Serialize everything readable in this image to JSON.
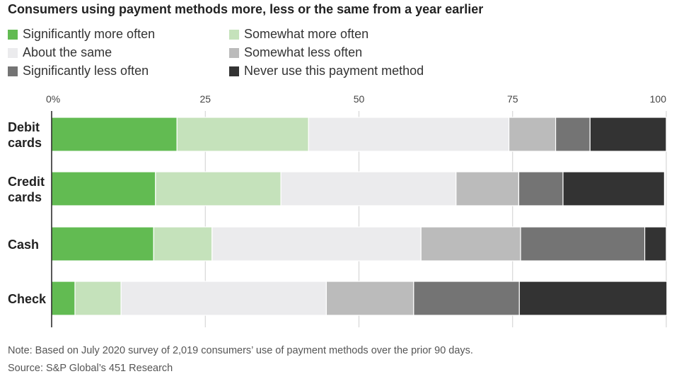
{
  "title": "Consumers using payment methods more, less or the same from a year earlier",
  "note": "Note: Based on July 2020 survey of 2,019 consumers’ use of payment methods over the prior 90 days.",
  "source": "Source: S&P Global’s 451 Research",
  "chart_data": {
    "type": "bar",
    "orientation": "horizontal",
    "stacked": true,
    "title": "Consumers using payment methods more, less or the same from a year earlier",
    "xlim": [
      0,
      100
    ],
    "xticks": [
      0,
      25,
      50,
      75,
      100
    ],
    "xtick_labels": [
      "0%",
      "25",
      "50",
      "75",
      "100"
    ],
    "categories": [
      [
        "Debit",
        "cards"
      ],
      [
        "Credit",
        "cards"
      ],
      [
        "Cash"
      ],
      [
        "Check"
      ]
    ],
    "legend_position": "top",
    "series": [
      {
        "name": "Significantly more often",
        "color": "#62bb52",
        "values": [
          20.4,
          16.9,
          16.6,
          3.8
        ]
      },
      {
        "name": "Somewhat more often",
        "color": "#c5e2bb",
        "values": [
          21.4,
          20.4,
          9.5,
          7.5
        ]
      },
      {
        "name": "About the same",
        "color": "#ebebed",
        "values": [
          32.6,
          28.5,
          34.0,
          33.4
        ]
      },
      {
        "name": "Somewhat less often",
        "color": "#bbbbbb",
        "values": [
          7.6,
          10.2,
          16.2,
          14.2
        ]
      },
      {
        "name": "Significantly less often",
        "color": "#747474",
        "values": [
          5.6,
          7.2,
          20.2,
          17.2
        ]
      },
      {
        "name": "Never use this payment method",
        "color": "#333333",
        "values": [
          12.4,
          16.5,
          3.5,
          24.0
        ]
      }
    ]
  }
}
